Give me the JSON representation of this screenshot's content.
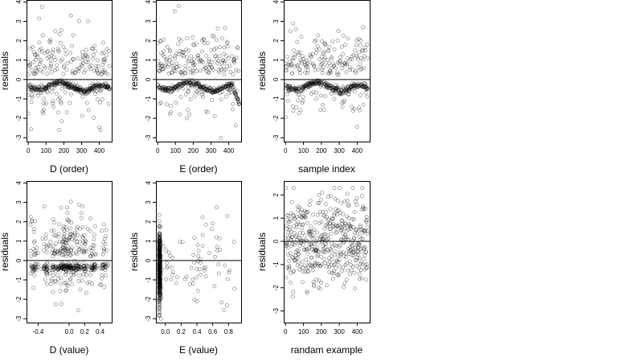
{
  "chart_data": [
    {
      "type": "scatter",
      "xlabel": "D (order)",
      "ylabel": "residuals",
      "xlim": [
        -10,
        470
      ],
      "ylim": [
        -3.2,
        4.1
      ],
      "xticks": [
        "0",
        "100",
        "200",
        "300",
        "400"
      ],
      "yticks": [
        "-3",
        "-2",
        "-1",
        "0",
        "1",
        "2",
        "3",
        "4"
      ],
      "hline": 0,
      "pattern": "order",
      "n": 470
    },
    {
      "type": "scatter",
      "xlabel": "E (order)",
      "ylabel": "residuals",
      "xlim": [
        -10,
        470
      ],
      "ylim": [
        -3.2,
        4.1
      ],
      "xticks": [
        "0",
        "100",
        "200",
        "300",
        "400"
      ],
      "yticks": [
        "-3",
        "-2",
        "-1",
        "0",
        "1",
        "2",
        "3",
        "4"
      ],
      "hline": 0,
      "pattern": "order_e",
      "n": 470
    },
    {
      "type": "scatter",
      "xlabel": "sample index",
      "ylabel": "residuals",
      "xlim": [
        -10,
        470
      ],
      "ylim": [
        -3.2,
        4.1
      ],
      "xticks": [
        "0",
        "100",
        "200",
        "300",
        "400"
      ],
      "yticks": [
        "-3",
        "-2",
        "-1",
        "0",
        "1",
        "2",
        "3",
        "4"
      ],
      "hline": 0,
      "pattern": "order",
      "n": 470
    },
    {
      "type": "scatter",
      "xlabel": "D (value)",
      "ylabel": "residuals",
      "xlim": [
        -0.55,
        0.55
      ],
      "ylim": [
        -3.2,
        4.1
      ],
      "xticks": [
        "-0.4",
        "0.0",
        "0.2",
        "0.4"
      ],
      "xtick_values": [
        -0.4,
        0.0,
        0.2,
        0.4
      ],
      "yticks": [
        "-3",
        "-2",
        "-1",
        "0",
        "1",
        "2",
        "3",
        "4"
      ],
      "hline": 0,
      "pattern": "dvalue",
      "n": 470
    },
    {
      "type": "scatter",
      "xlabel": "E (value)",
      "ylabel": "residuals",
      "xlim": [
        -0.12,
        0.96
      ],
      "ylim": [
        -3.2,
        4.1
      ],
      "xticks": [
        "0.0",
        "0.2",
        "0.4",
        "0.6",
        "0.8"
      ],
      "xtick_values": [
        0.0,
        0.2,
        0.4,
        0.6,
        0.8
      ],
      "yticks": [
        "-3",
        "-2",
        "-1",
        "0",
        "1",
        "2",
        "3",
        "4"
      ],
      "hline": 0,
      "pattern": "evalue",
      "n": 470
    },
    {
      "type": "scatter",
      "xlabel": "randam example",
      "ylabel": "residuals",
      "xlim": [
        -10,
        470
      ],
      "ylim": [
        -3.5,
        2.6
      ],
      "xticks": [
        "0",
        "100",
        "200",
        "300",
        "400"
      ],
      "yticks": [
        "-3",
        "-2",
        "-1",
        "0",
        "1",
        "2"
      ],
      "hline": 0,
      "pattern": "random",
      "n": 470
    }
  ]
}
